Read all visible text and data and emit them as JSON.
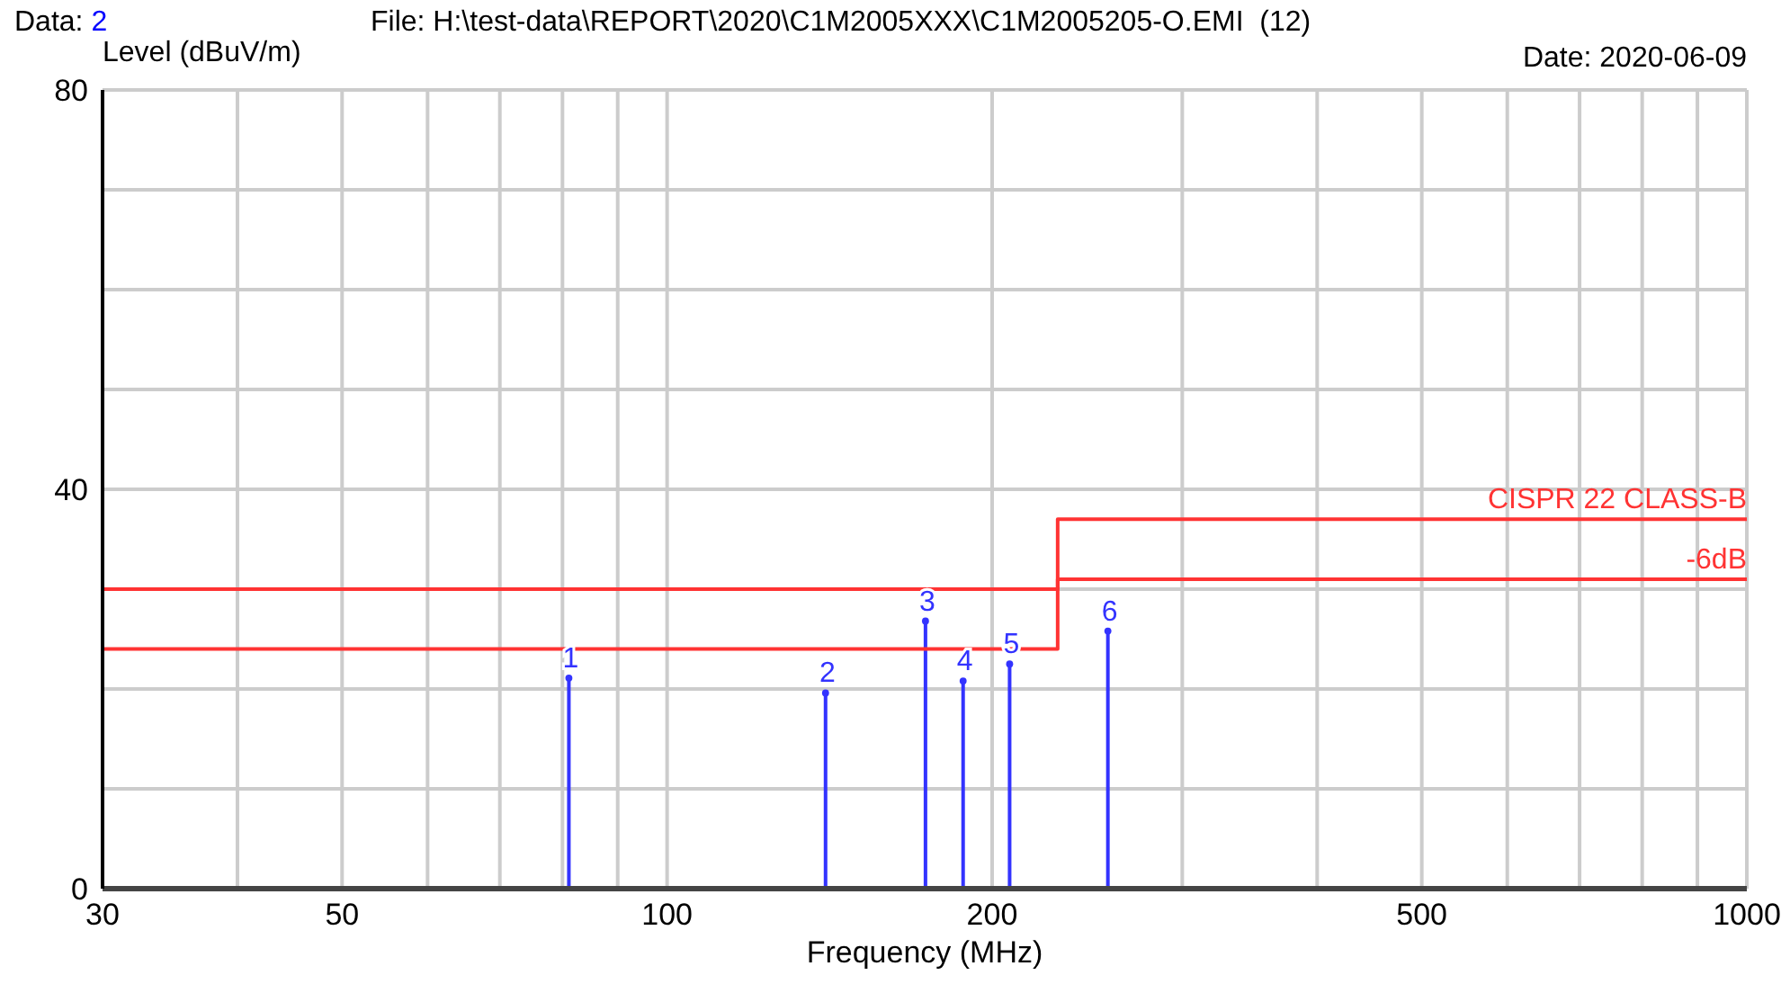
{
  "chart_data": {
    "type": "lollipop",
    "xlabel": "Frequency (MHz)",
    "ylabel": "Level (dBuV/m)",
    "log": "x",
    "grid": true,
    "legend": false,
    "xlim": [
      30,
      1000
    ],
    "ylim": [
      0,
      80
    ],
    "xticks": [
      30,
      {
        "value": 40,
        "label": null
      },
      50,
      {
        "value": 60,
        "label": null
      },
      {
        "value": 70,
        "label": null
      },
      {
        "value": 80,
        "label": null
      },
      {
        "value": 90,
        "label": null
      },
      100,
      200,
      {
        "value": 300,
        "label": null
      },
      {
        "value": 400,
        "label": null
      },
      500,
      {
        "value": 600,
        "label": null
      },
      {
        "value": 700,
        "label": null
      },
      {
        "value": 800,
        "label": null
      },
      {
        "value": 900,
        "label": null
      },
      1000
    ],
    "yticks": [
      0,
      {
        "value": 10,
        "label": null
      },
      {
        "value": 20,
        "label": null
      },
      {
        "value": 30,
        "label": null
      },
      40,
      {
        "value": 50,
        "label": null
      },
      {
        "value": 60,
        "label": null
      },
      {
        "value": 70,
        "label": null
      },
      80
    ],
    "series": [
      {
        "type": "lollipop",
        "color": "#3333ff",
        "x": [
          81.1,
          140.2,
          173.5,
          188,
          207.6,
          256
        ],
        "values": [
          21.1,
          19.6,
          26.8,
          20.8,
          22.5,
          25.8
        ]
      },
      {
        "type": "step",
        "name": "CISPR 22 CLASS-B",
        "color": "#ff3333",
        "x": [
          30,
          230,
          1000
        ],
        "values": [
          30,
          37,
          37
        ]
      },
      {
        "type": "step",
        "name": "-6dB",
        "color": "#ff3333",
        "x": [
          30,
          230,
          1000
        ],
        "values": [
          24,
          31,
          31
        ]
      }
    ],
    "annotations": [
      "Data: 2",
      "File: H:\\test-data\\REPORT\\2020\\C1M2005XXX\\C1M2005205-O.EMI  (12)",
      "Date: 2020-06-09",
      {
        "text": "1",
        "x": 81.1,
        "y": 21.1
      },
      {
        "text": "2",
        "x": 140.2,
        "y": 19.6
      },
      {
        "text": "3",
        "x": 173.5,
        "y": 26.8
      },
      {
        "text": "4",
        "x": 188,
        "y": 20.8
      },
      {
        "text": "5",
        "x": 207.6,
        "y": 22.5
      },
      {
        "text": "6",
        "x": 256,
        "y": 25.8
      }
    ]
  }
}
